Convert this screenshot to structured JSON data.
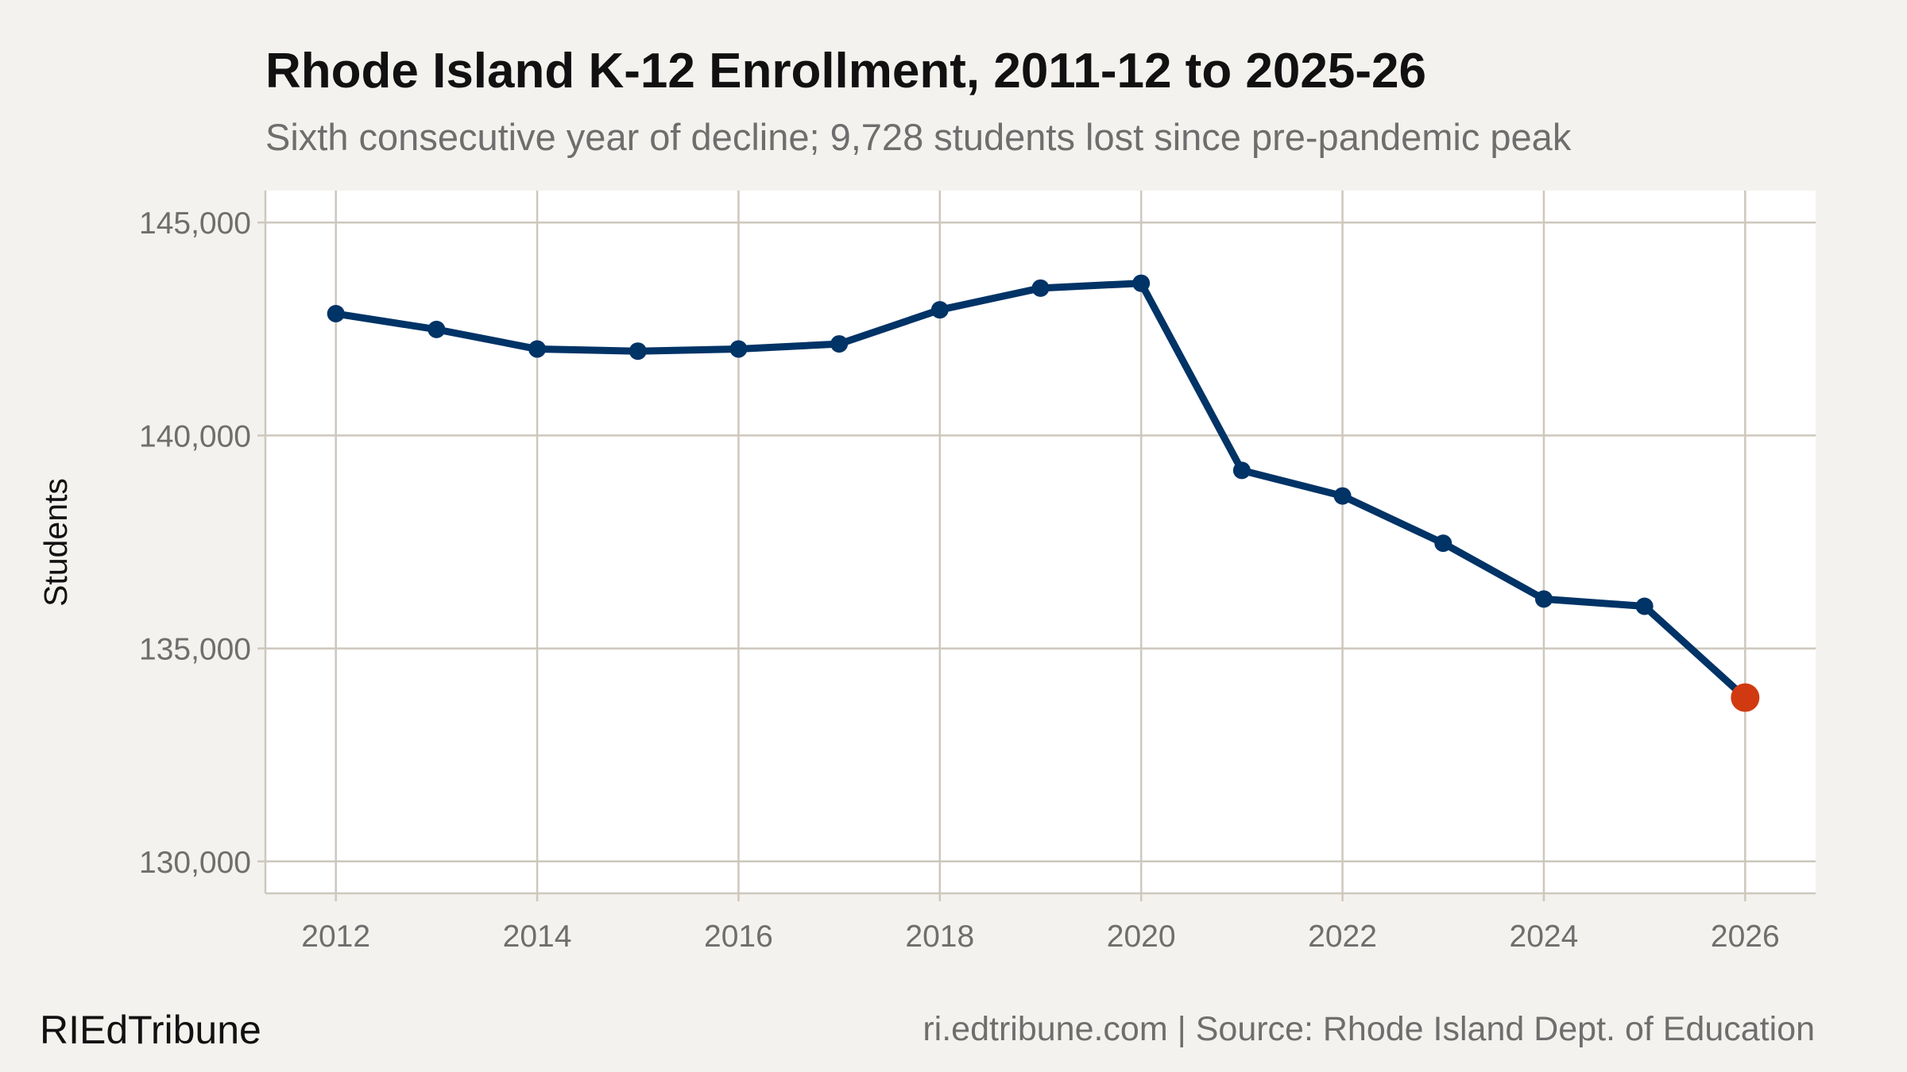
{
  "chart_data": {
    "type": "line",
    "title": "Rhode Island K-12 Enrollment, 2011-12 to 2025-26",
    "subtitle": "Sixth consecutive year of decline; 9,728 students lost since pre-pandemic peak",
    "xlabel": "",
    "ylabel": "Students",
    "xlim": [
      2011.3,
      2026.7
    ],
    "ylim": [
      129250,
      145750
    ],
    "x_ticks": [
      2012,
      2014,
      2016,
      2018,
      2020,
      2022,
      2024,
      2026
    ],
    "x_tick_labels": [
      "2012",
      "2014",
      "2016",
      "2018",
      "2020",
      "2022",
      "2024",
      "2026"
    ],
    "y_ticks": [
      130000,
      135000,
      140000,
      145000
    ],
    "y_tick_labels": [
      "130,000",
      "135,000",
      "140,000",
      "145,000"
    ],
    "grid": true,
    "x": [
      2012,
      2013,
      2014,
      2015,
      2016,
      2017,
      2018,
      2019,
      2020,
      2021,
      2022,
      2023,
      2024,
      2025,
      2026
    ],
    "values": [
      142860,
      142490,
      142030,
      141980,
      142030,
      142150,
      142950,
      143460,
      143574,
      139180,
      138580,
      137470,
      136160,
      135990,
      133846
    ],
    "highlight_x": 2026,
    "colors": {
      "line": "#003366",
      "highlight": "#d13a10",
      "grid": "#cdc7bd",
      "background": "#f4f2ee",
      "panel": "#ffffff"
    }
  },
  "footer": {
    "brand": "RIEdTribune",
    "source": "ri.edtribune.com | Source: Rhode Island Dept. of Education"
  }
}
